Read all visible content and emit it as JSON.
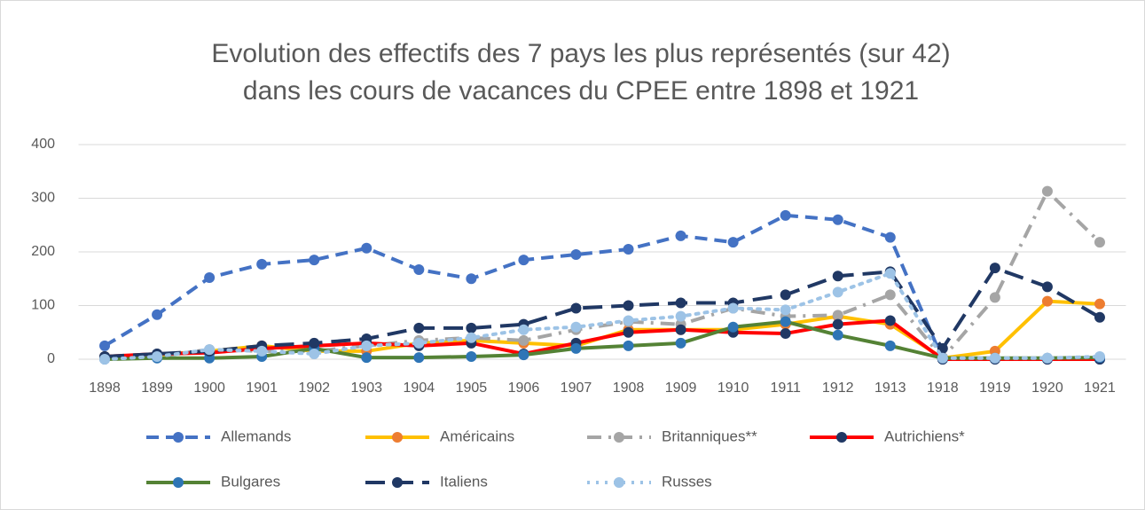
{
  "chart_data": {
    "type": "line",
    "title": [
      "Evolution des effectifs des 7 pays les plus représentés (sur 42)",
      "dans les cours de vacances du CPEE entre 1898 et 1921"
    ],
    "categories": [
      "1898",
      "1899",
      "1900",
      "1901",
      "1902",
      "1903",
      "1904",
      "1905",
      "1906",
      "1907",
      "1908",
      "1909",
      "1910",
      "1911",
      "1912",
      "1913",
      "1918",
      "1919",
      "1920",
      "1921"
    ],
    "ylim": [
      0,
      400
    ],
    "yticks": [
      0,
      100,
      200,
      300,
      400
    ],
    "grid": true,
    "legend": "bottom",
    "series": [
      {
        "name": "Allemands",
        "color": "#4472c4",
        "marker_color": "#4472c4",
        "dash": "dash",
        "values": [
          25,
          83,
          152,
          177,
          185,
          207,
          167,
          150,
          185,
          195,
          205,
          230,
          218,
          268,
          260,
          227,
          0,
          0,
          0,
          0
        ]
      },
      {
        "name": "Américains",
        "color": "#ffc000",
        "marker_color": "#ed7d31",
        "dash": "solid",
        "values": [
          5,
          8,
          15,
          25,
          15,
          15,
          30,
          35,
          30,
          25,
          55,
          55,
          55,
          65,
          80,
          65,
          2,
          15,
          108,
          103
        ]
      },
      {
        "name": "Britanniques**",
        "color": "#a5a5a5",
        "marker_color": "#a5a5a5",
        "dash": "dashdot",
        "values": [
          3,
          5,
          18,
          15,
          15,
          25,
          35,
          40,
          35,
          55,
          70,
          65,
          95,
          80,
          82,
          120,
          2,
          115,
          313,
          218
        ]
      },
      {
        "name": "Autrichiens*",
        "color": "#ff0000",
        "marker_color": "#203864",
        "dash": "solid",
        "values": [
          5,
          10,
          12,
          20,
          25,
          30,
          25,
          30,
          10,
          30,
          50,
          55,
          50,
          48,
          65,
          72,
          0,
          0,
          0,
          0
        ]
      },
      {
        "name": "Bulgares",
        "color": "#548235",
        "marker_color": "#2e75b6",
        "dash": "solid",
        "values": [
          0,
          2,
          2,
          5,
          20,
          3,
          3,
          5,
          8,
          20,
          25,
          30,
          60,
          70,
          45,
          25,
          2,
          2,
          2,
          3
        ]
      },
      {
        "name": "Italiens",
        "color": "#203864",
        "marker_color": "#203864",
        "dash": "longdash",
        "values": [
          5,
          10,
          15,
          25,
          30,
          38,
          58,
          58,
          65,
          95,
          100,
          105,
          105,
          120,
          155,
          163,
          20,
          170,
          135,
          78
        ]
      },
      {
        "name": "Russes",
        "color": "#9dc3e6",
        "marker_color": "#9dc3e6",
        "dash": "dot",
        "values": [
          0,
          5,
          18,
          15,
          10,
          25,
          30,
          40,
          55,
          60,
          72,
          80,
          95,
          92,
          125,
          160,
          2,
          2,
          2,
          5
        ]
      }
    ]
  }
}
